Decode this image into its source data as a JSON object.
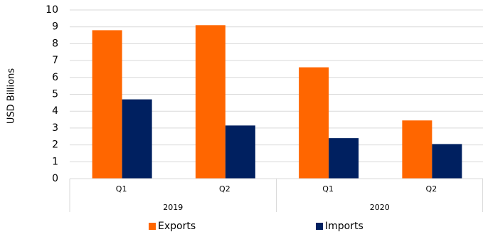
{
  "chart_data": {
    "type": "bar",
    "y_label": "USD Billions",
    "categories": [
      "Q1",
      "Q2",
      "Q1",
      "Q2"
    ],
    "groups": [
      "2019",
      "2020"
    ],
    "series": [
      {
        "name": "Exports",
        "color": "#ff6600",
        "values": [
          8.8,
          9.1,
          6.6,
          3.45
        ]
      },
      {
        "name": "Imports",
        "color": "#002060",
        "values": [
          4.7,
          3.15,
          2.4,
          2.05
        ]
      }
    ],
    "ylim": [
      0,
      10
    ],
    "yticks": [
      0,
      1,
      2,
      3,
      4,
      5,
      6,
      7,
      8,
      9,
      10
    ],
    "grid": true
  }
}
